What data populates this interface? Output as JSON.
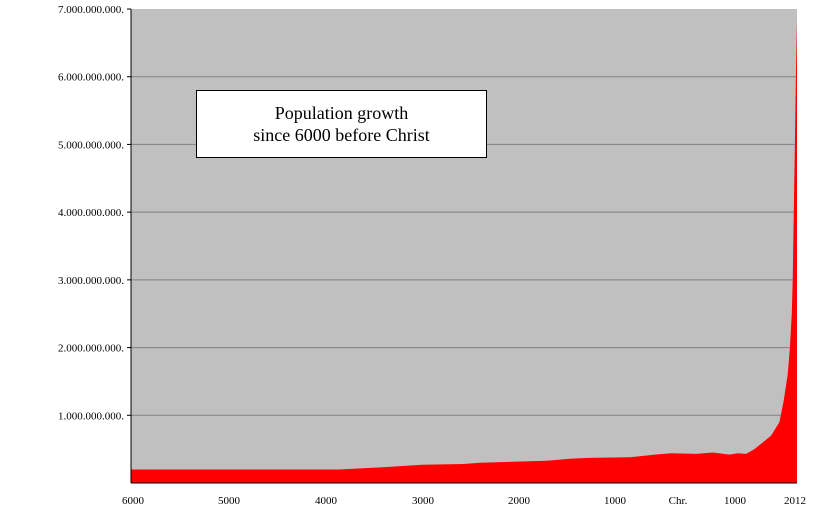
{
  "chart_data": {
    "type": "area",
    "title_lines": [
      "Population growth",
      "since 6000 before Christ"
    ],
    "xlabel": "",
    "ylabel": "",
    "x_ticks": [
      "6000",
      "5000",
      "4000",
      "3000",
      "2000",
      "1000",
      "Chr.",
      "1000",
      "2012"
    ],
    "y_ticks": [
      "1.000.000.000.",
      "2.000.000.000.",
      "3.000.000.000.",
      "4.000.000.000.",
      "5.000.000.000.",
      "6.000.000.000.",
      "7.000.000.000."
    ],
    "ylim": [
      0,
      7000000000
    ],
    "xlim": [
      -6000,
      2012
    ],
    "grid": true,
    "colors": {
      "plot_bg": "#c0c0c0",
      "fill": "#ff0000",
      "grid": "#808080",
      "axis": "#000000"
    },
    "series": [
      {
        "x": [
          -6000,
          -5000,
          -4000,
          -3500,
          -3000,
          -2500,
          -2000,
          -1800,
          -1500,
          -1000,
          -700,
          -500,
          0,
          300,
          500,
          800,
          1000,
          1200,
          1300,
          1400,
          1500,
          1600,
          1700,
          1800,
          1850,
          1900,
          1927,
          1950,
          1960,
          1974,
          1987,
          1999,
          2012
        ],
        "y": [
          200000000,
          200000000,
          200000000,
          200000000,
          230000000,
          270000000,
          280000000,
          300000000,
          310000000,
          330000000,
          360000000,
          370000000,
          380000000,
          420000000,
          440000000,
          430000000,
          450000000,
          420000000,
          440000000,
          430000000,
          500000000,
          600000000,
          700000000,
          900000000,
          1200000000,
          1600000000,
          2000000000,
          2500000000,
          3000000000,
          4000000000,
          5000000000,
          6000000000,
          6850000000
        ]
      }
    ]
  }
}
